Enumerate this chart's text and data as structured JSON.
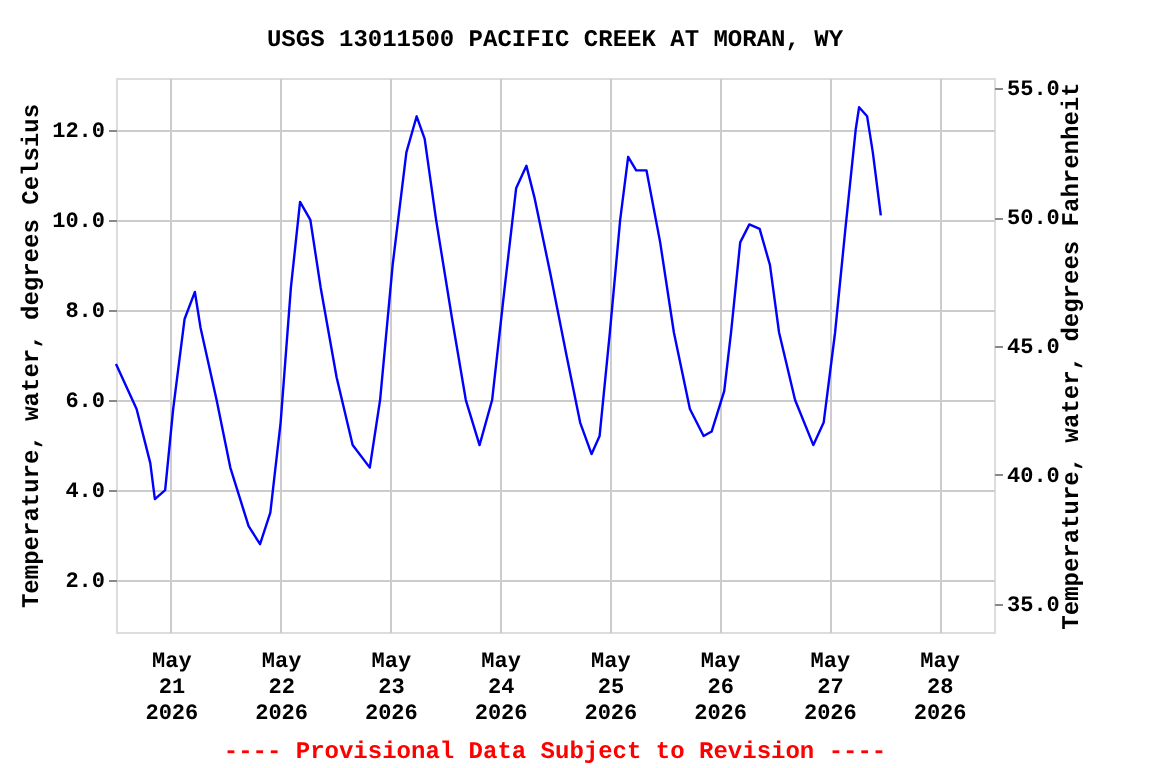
{
  "chart_data": {
    "type": "line",
    "title": "USGS 13011500 PACIFIC CREEK AT MORAN, WY",
    "ylabel": "Temperature, water, degrees Celsius",
    "y2label": "Temperature, water, degrees Fahrenheit",
    "annotations": [
      "---- Provisional Data Subject to Revision ----"
    ],
    "x": [
      "2026-05-20T12:00",
      "2026-05-20T16:30",
      "2026-05-20T19:30",
      "2026-05-20T20:30",
      "2026-05-20T22:45",
      "2026-05-21T00:30",
      "2026-05-21T03:00",
      "2026-05-21T05:15",
      "2026-05-21T06:30",
      "2026-05-21T10:00",
      "2026-05-21T13:00",
      "2026-05-21T17:00",
      "2026-05-21T19:30",
      "2026-05-21T21:45",
      "2026-05-22T00:00",
      "2026-05-22T02:15",
      "2026-05-22T04:15",
      "2026-05-22T06:30",
      "2026-05-22T08:45",
      "2026-05-22T12:15",
      "2026-05-22T15:45",
      "2026-05-22T19:30",
      "2026-05-22T21:45",
      "2026-05-23T00:30",
      "2026-05-23T03:30",
      "2026-05-23T05:45",
      "2026-05-23T07:30",
      "2026-05-23T10:00",
      "2026-05-23T13:30",
      "2026-05-23T16:30",
      "2026-05-23T19:30",
      "2026-05-23T22:15",
      "2026-05-24T01:00",
      "2026-05-24T03:30",
      "2026-05-24T05:45",
      "2026-05-24T07:30",
      "2026-05-24T11:00",
      "2026-05-24T14:30",
      "2026-05-24T17:30",
      "2026-05-24T20:00",
      "2026-05-24T21:45",
      "2026-05-25T00:00",
      "2026-05-25T02:15",
      "2026-05-25T04:00",
      "2026-05-25T05:45",
      "2026-05-25T08:00",
      "2026-05-25T11:00",
      "2026-05-25T14:00",
      "2026-05-25T17:30",
      "2026-05-25T20:30",
      "2026-05-25T22:15",
      "2026-05-26T01:00",
      "2026-05-26T02:30",
      "2026-05-26T04:30",
      "2026-05-26T06:30",
      "2026-05-26T08:45",
      "2026-05-26T11:00",
      "2026-05-26T13:00",
      "2026-05-26T16:30",
      "2026-05-26T20:30",
      "2026-05-26T22:45",
      "2026-05-27T01:15",
      "2026-05-27T03:30",
      "2026-05-27T05:45",
      "2026-05-27T06:30",
      "2026-05-27T08:15",
      "2026-05-27T09:30",
      "2026-05-27T11:15"
    ],
    "series": [
      {
        "color": "#0000ff",
        "values": [
          6.8,
          5.8,
          4.6,
          3.8,
          4.0,
          5.8,
          7.8,
          8.4,
          7.6,
          6.0,
          4.5,
          3.2,
          2.8,
          3.5,
          5.5,
          8.5,
          10.4,
          10.0,
          8.5,
          6.5,
          5.0,
          4.5,
          6.0,
          9.0,
          11.5,
          12.3,
          11.8,
          10.0,
          7.8,
          6.0,
          5.0,
          6.0,
          8.5,
          10.7,
          11.2,
          10.5,
          8.8,
          7.0,
          5.5,
          4.8,
          5.2,
          7.5,
          10.0,
          11.4,
          11.1,
          11.1,
          9.5,
          7.5,
          5.8,
          5.2,
          5.3,
          6.2,
          7.5,
          9.5,
          9.9,
          9.8,
          9.0,
          7.5,
          6.0,
          5.0,
          5.5,
          7.5,
          9.8,
          12.0,
          12.5,
          12.3,
          11.5,
          10.1
        ]
      }
    ],
    "xlim": [
      "2026-05-20T12:00",
      "2026-05-28T12:00"
    ],
    "xticks": [
      {
        "value": "2026-05-21",
        "label": "May\n21\n2026"
      },
      {
        "value": "2026-05-22",
        "label": "May\n22\n2026"
      },
      {
        "value": "2026-05-23",
        "label": "May\n23\n2026"
      },
      {
        "value": "2026-05-24",
        "label": "May\n24\n2026"
      },
      {
        "value": "2026-05-25",
        "label": "May\n25\n2026"
      },
      {
        "value": "2026-05-26",
        "label": "May\n26\n2026"
      },
      {
        "value": "2026-05-27",
        "label": "May\n27\n2026"
      },
      {
        "value": "2026-05-28",
        "label": "May\n28\n2026"
      }
    ],
    "ylim": [
      0.85,
      13.15
    ],
    "yticks": [
      {
        "value": 2,
        "label": "2.0"
      },
      {
        "value": 4,
        "label": "4.0"
      },
      {
        "value": 6,
        "label": "6.0"
      },
      {
        "value": 8,
        "label": "8.0"
      },
      {
        "value": 10,
        "label": "10.0"
      },
      {
        "value": 12,
        "label": "12.0"
      }
    ],
    "y2lim": [
      33.9,
      55.4
    ],
    "y2ticks": [
      {
        "value": 35,
        "label": "35.0"
      },
      {
        "value": 40,
        "label": "40.0"
      },
      {
        "value": 45,
        "label": "45.0"
      },
      {
        "value": 50,
        "label": "50.0"
      },
      {
        "value": 55,
        "label": "55.0"
      }
    ],
    "grid": true,
    "line_style": "solid",
    "marker": "none"
  }
}
